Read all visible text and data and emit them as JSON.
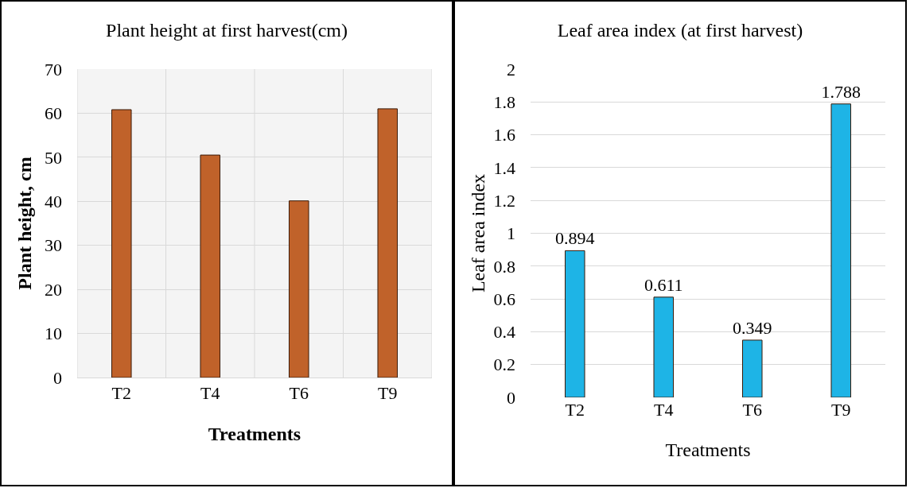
{
  "chart_data": [
    {
      "type": "bar",
      "title": "Plant height at first harvest(cm)",
      "xlabel": "Treatments",
      "ylabel": "Plant height, cm",
      "categories": [
        "T2",
        "T4",
        "T6",
        "T9"
      ],
      "values": [
        60.8,
        50.5,
        40.1,
        61.0
      ],
      "color": "#c0622a",
      "ylim": [
        0,
        70
      ],
      "yticks": [
        0,
        10,
        20,
        30,
        40,
        50,
        60,
        70
      ],
      "grid": true
    },
    {
      "type": "bar",
      "title": "Leaf area index (at first harvest)",
      "xlabel": "Treatments",
      "ylabel": "Leaf area index",
      "categories": [
        "T2",
        "T4",
        "T6",
        "T9"
      ],
      "values": [
        0.894,
        0.611,
        0.349,
        1.788
      ],
      "color": "#1eb4e6",
      "ylim": [
        0,
        2
      ],
      "yticks": [
        0,
        0.2,
        0.4,
        0.6,
        0.8,
        1,
        1.2,
        1.4,
        1.6,
        1.8,
        2
      ],
      "grid": "y",
      "data_labels": true
    }
  ]
}
